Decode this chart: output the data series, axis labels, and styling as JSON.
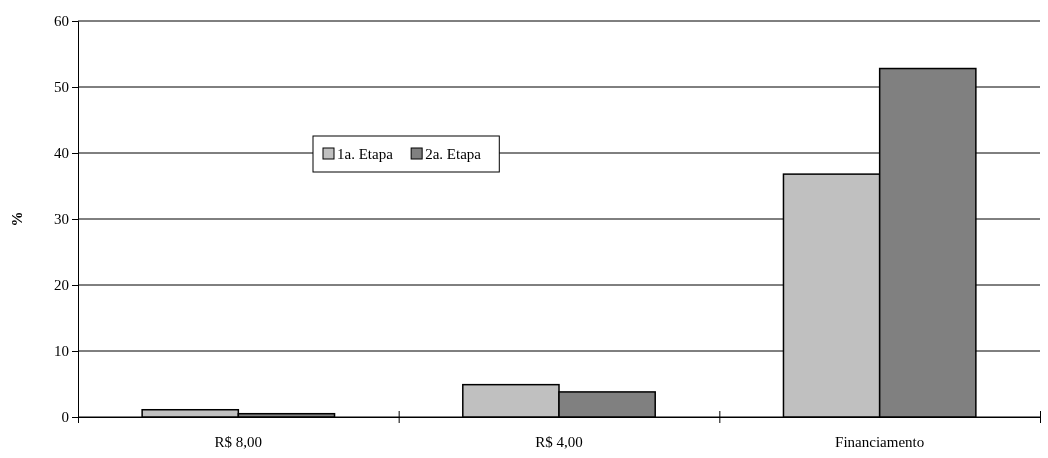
{
  "chart_data": {
    "type": "bar",
    "ylabel": "%",
    "categories": [
      "R$ 8,00",
      "R$ 4,00",
      "Financiamento"
    ],
    "series": [
      {
        "name": "1a.  Etapa",
        "color": "#c0c0c0",
        "values": [
          1.1,
          4.9,
          36.8
        ]
      },
      {
        "name": "2a. Etapa",
        "color": "#808080",
        "values": [
          0.5,
          3.8,
          52.8
        ]
      }
    ],
    "ylim": [
      0,
      60
    ],
    "yticks": [
      0,
      10,
      20,
      30,
      40,
      50,
      60
    ],
    "grid": "y",
    "legend": "top left"
  }
}
